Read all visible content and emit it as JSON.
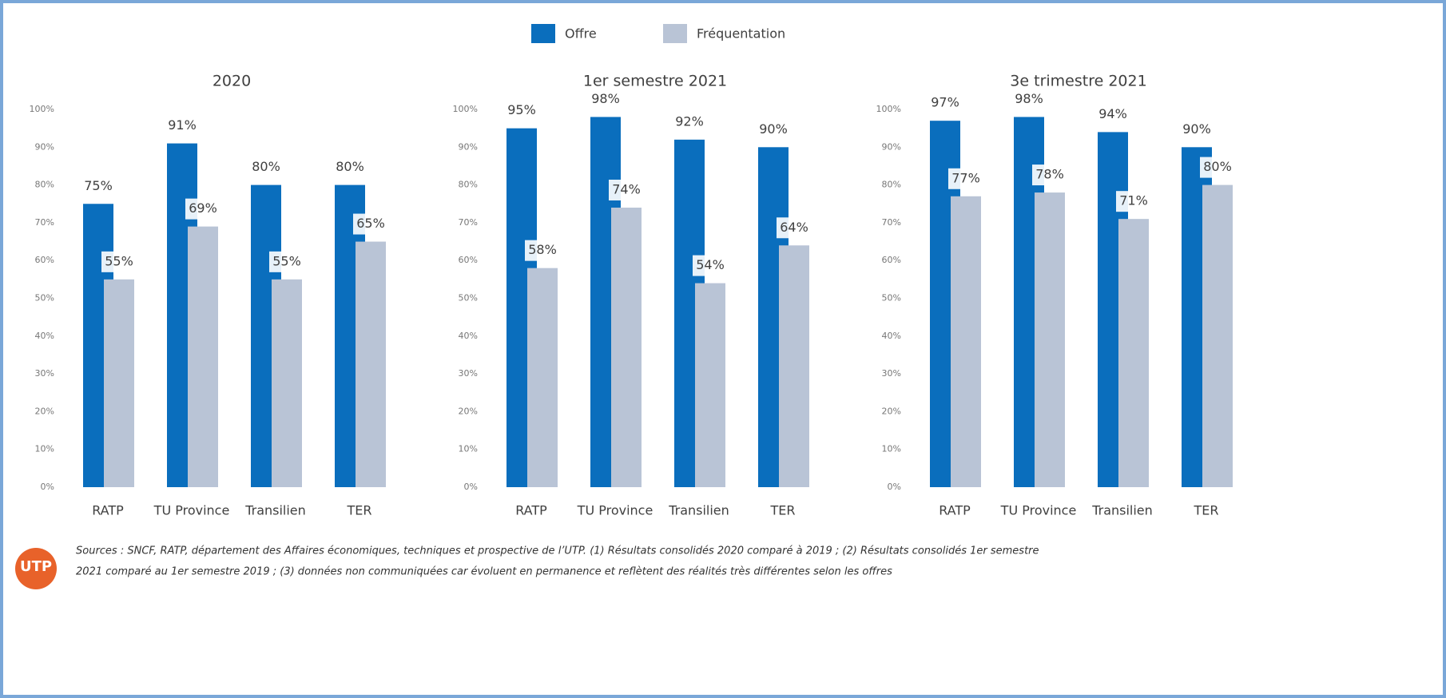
{
  "legend": {
    "items": [
      {
        "name": "Offre",
        "color": "#0a6ebd"
      },
      {
        "name": "Fréquentation",
        "color": "#b9c4d6"
      }
    ]
  },
  "chart_data": [
    {
      "type": "bar",
      "title": "2020",
      "categories": [
        "RATP",
        "TU Province",
        "Transilien",
        "TER"
      ],
      "series": [
        {
          "values": [
            75,
            91,
            80,
            80
          ],
          "value_labels": [
            "75%",
            "91%",
            "80%",
            "80%"
          ]
        },
        {
          "values": [
            55,
            69,
            55,
            65
          ],
          "value_labels": [
            "55%",
            "69%",
            "55%",
            "65%"
          ]
        }
      ],
      "ylim": [
        0,
        100
      ],
      "yticks": [
        {
          "value": 0,
          "label": "0%"
        },
        {
          "value": 10,
          "label": "10%"
        },
        {
          "value": 20,
          "label": "20%"
        },
        {
          "value": 30,
          "label": "30%"
        },
        {
          "value": 40,
          "label": "40%"
        },
        {
          "value": 50,
          "label": "50%"
        },
        {
          "value": 60,
          "label": "60%"
        },
        {
          "value": 70,
          "label": "70%"
        },
        {
          "value": 80,
          "label": "80%"
        },
        {
          "value": 90,
          "label": "90%"
        },
        {
          "value": 100,
          "label": "100%"
        }
      ]
    },
    {
      "type": "bar",
      "title": "1er semestre 2021",
      "categories": [
        "RATP",
        "TU Province",
        "Transilien",
        "TER"
      ],
      "series": [
        {
          "values": [
            95,
            98,
            92,
            90
          ],
          "value_labels": [
            "95%",
            "98%",
            "92%",
            "90%"
          ]
        },
        {
          "values": [
            58,
            74,
            54,
            64
          ],
          "value_labels": [
            "58%",
            "74%",
            "54%",
            "64%"
          ]
        }
      ],
      "ylim": [
        0,
        100
      ],
      "yticks": [
        {
          "value": 0,
          "label": "0%"
        },
        {
          "value": 10,
          "label": "10%"
        },
        {
          "value": 20,
          "label": "20%"
        },
        {
          "value": 30,
          "label": "30%"
        },
        {
          "value": 40,
          "label": "40%"
        },
        {
          "value": 50,
          "label": "50%"
        },
        {
          "value": 60,
          "label": "60%"
        },
        {
          "value": 70,
          "label": "70%"
        },
        {
          "value": 80,
          "label": "80%"
        },
        {
          "value": 90,
          "label": "90%"
        },
        {
          "value": 100,
          "label": "100%"
        }
      ]
    },
    {
      "type": "bar",
      "title": "3e trimestre 2021",
      "categories": [
        "RATP",
        "TU Province",
        "Transilien",
        "TER"
      ],
      "series": [
        {
          "values": [
            97,
            98,
            94,
            90
          ],
          "value_labels": [
            "97%",
            "98%",
            "94%",
            "90%"
          ]
        },
        {
          "values": [
            77,
            78,
            71,
            80
          ],
          "value_labels": [
            "77%",
            "78%",
            "71%",
            "80%"
          ]
        }
      ],
      "ylim": [
        0,
        100
      ],
      "yticks": [
        {
          "value": 0,
          "label": "0%"
        },
        {
          "value": 10,
          "label": "10%"
        },
        {
          "value": 20,
          "label": "20%"
        },
        {
          "value": 30,
          "label": "30%"
        },
        {
          "value": 40,
          "label": "40%"
        },
        {
          "value": 50,
          "label": "50%"
        },
        {
          "value": 60,
          "label": "60%"
        },
        {
          "value": 70,
          "label": "70%"
        },
        {
          "value": 80,
          "label": "80%"
        },
        {
          "value": 90,
          "label": "90%"
        },
        {
          "value": 100,
          "label": "100%"
        }
      ]
    }
  ],
  "footer": {
    "logo": "UTP",
    "sources": [
      "Sources : SNCF, RATP, département des Affaires économiques, techniques et prospective de l’UTP. (1) Résultats consolidés 2020 comparé à 2019 ; (2) Résultats consolidés 1er semestre",
      "2021 comparé au 1er semestre 2019 ; (3) données non communiquées car évoluent en permanence et reflètent des réalités très différentes selon les offres"
    ]
  }
}
